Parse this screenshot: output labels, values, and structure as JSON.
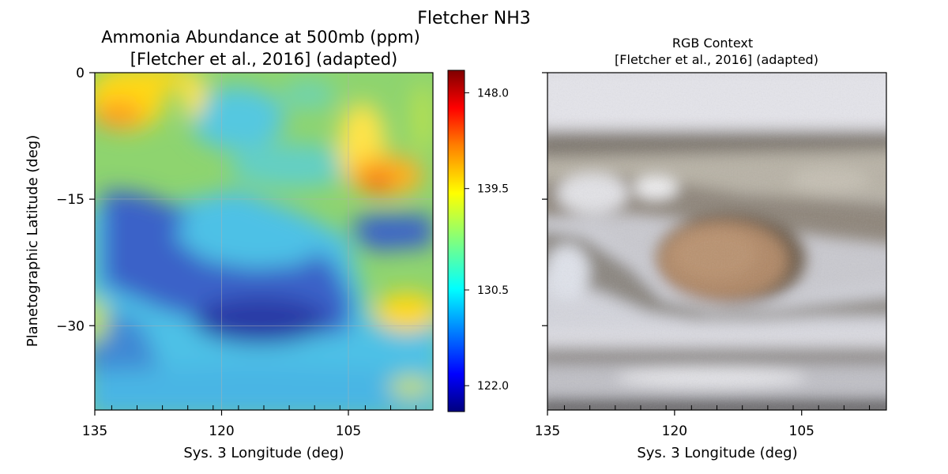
{
  "figure": {
    "suptitle": "Fletcher NH3"
  },
  "colors": {
    "jet": [
      "#00007f",
      "#0000ff",
      "#007fff",
      "#00ffff",
      "#7fff7f",
      "#ffff00",
      "#ff7f00",
      "#ff0000",
      "#7f0000"
    ]
  },
  "chart_data": [
    {
      "type": "heatmap",
      "title_line1": "Ammonia Abundance at 500mb (ppm)",
      "title_line2": "[Fletcher et al., 2016] (adapted)",
      "xlabel": "Sys. 3 Longitude (deg)",
      "ylabel": "Planetographic Latitude (deg)",
      "xlim": [
        135,
        95
      ],
      "ylim": [
        -40,
        0
      ],
      "xticks": [
        135,
        120,
        105
      ],
      "yticks": [
        0,
        -15,
        -30
      ],
      "xtick_labels": [
        "135",
        "120",
        "105"
      ],
      "ytick_labels": [
        "0",
        "−15",
        "−30"
      ],
      "grid": true,
      "colormap": "jet",
      "colorbar": {
        "range": [
          119.7,
          150.0
        ],
        "ticks": [
          148.0,
          139.5,
          130.5,
          122.0
        ],
        "tick_labels": [
          "148.0",
          "139.5",
          "130.5",
          "122.0"
        ]
      },
      "features": [
        {
          "lon": 131,
          "lat": -4,
          "value": 142
        },
        {
          "lon": 127,
          "lat": -1,
          "value": 141
        },
        {
          "lon": 101,
          "lat": -13,
          "value": 144
        },
        {
          "lon": 100,
          "lat": -30,
          "value": 139
        },
        {
          "lon": 116,
          "lat": -29,
          "value": 124
        },
        {
          "lon": 116,
          "lat": -21,
          "value": 126
        },
        {
          "lon": 99,
          "lat": -19,
          "value": 126
        }
      ]
    },
    {
      "type": "image",
      "title_line1": "RGB Context",
      "title_line2": "[Fletcher et al., 2016] (adapted)",
      "xlabel": "Sys. 3 Longitude (deg)",
      "xlim": [
        135,
        95
      ],
      "ylim": [
        -40,
        0
      ],
      "xticks": [
        135,
        120,
        105
      ],
      "xtick_labels": [
        "135",
        "120",
        "105"
      ]
    }
  ]
}
